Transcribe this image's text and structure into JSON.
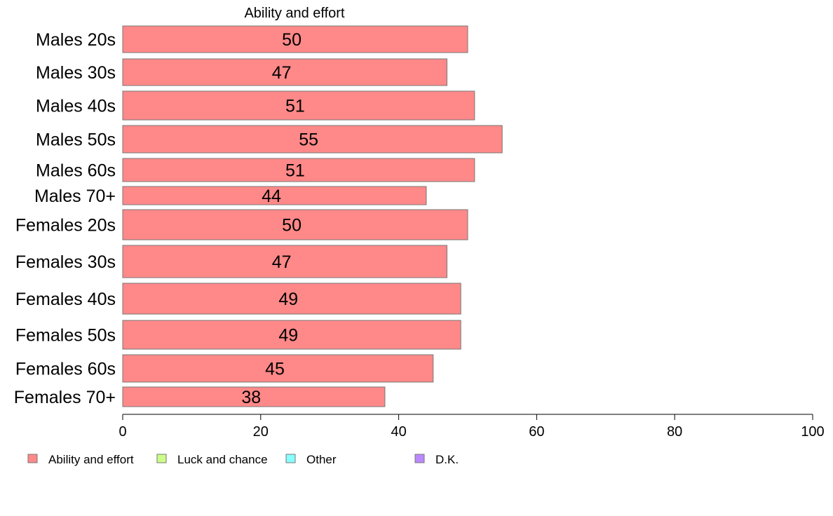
{
  "chart_data": {
    "type": "bar",
    "orientation": "horizontal",
    "title": "Ability and effort",
    "categories": [
      "Males 20s",
      "Males 30s",
      "Males 40s",
      "Males 50s",
      "Males 60s",
      "Males 70+",
      "Females 20s",
      "Females 30s",
      "Females 40s",
      "Females 50s",
      "Females 60s",
      "Females 70+"
    ],
    "series": [
      {
        "name": "Ability and effort",
        "color": "#ff8888",
        "values": [
          50,
          47,
          51,
          55,
          51,
          44,
          50,
          47,
          49,
          49,
          45,
          38
        ]
      }
    ],
    "xlim": [
      0,
      100
    ],
    "xticks": [
      0,
      20,
      40,
      60,
      80,
      100
    ],
    "grid": false,
    "legend_position": "bottom",
    "legend": [
      {
        "label": "Ability and effort",
        "color": "#ff8888"
      },
      {
        "label": "Luck and chance",
        "color": "#ccff88"
      },
      {
        "label": "Other",
        "color": "#88ffff"
      },
      {
        "label": "D.K.",
        "color": "#bb88ff"
      }
    ]
  }
}
